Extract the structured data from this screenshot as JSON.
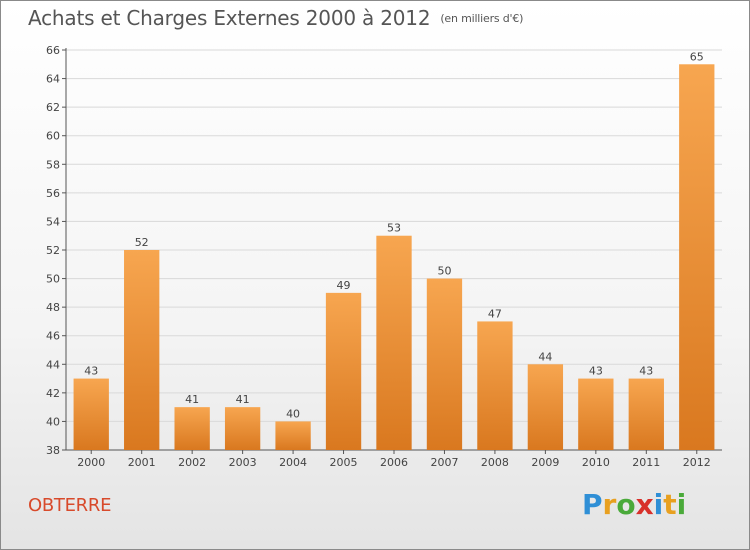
{
  "title": "Achats et Charges Externes 2000 à 2012",
  "unit": "(en milliers d'€)",
  "location": "OBTERRE",
  "logo": {
    "text": "Proxiti",
    "letters": [
      {
        "ch": "P",
        "color": "#2f8fd6"
      },
      {
        "ch": "r",
        "color": "#e8a020"
      },
      {
        "ch": "o",
        "color": "#4aaa3a"
      },
      {
        "ch": "x",
        "color": "#d8302a"
      },
      {
        "ch": "i",
        "color": "#2f8fd6"
      },
      {
        "ch": "t",
        "color": "#e8a020"
      },
      {
        "ch": "i",
        "color": "#4aaa3a"
      }
    ]
  },
  "colors": {
    "bar_top": "#f7a650",
    "bar_bottom": "#d9781f",
    "grid": "#d9d9d9",
    "axis": "#555555",
    "text": "#444444"
  },
  "chart_data": {
    "type": "bar",
    "categories": [
      "2000",
      "2001",
      "2002",
      "2003",
      "2004",
      "2005",
      "2006",
      "2007",
      "2008",
      "2009",
      "2010",
      "2011",
      "2012"
    ],
    "values": [
      43,
      52,
      41,
      41,
      40,
      49,
      53,
      50,
      47,
      44,
      43,
      43,
      65
    ],
    "ylim": [
      38,
      66
    ],
    "yticks": [
      38,
      40,
      42,
      44,
      46,
      48,
      50,
      52,
      54,
      56,
      58,
      60,
      62,
      64,
      66
    ],
    "grid": true,
    "xlabel": "",
    "ylabel": ""
  }
}
